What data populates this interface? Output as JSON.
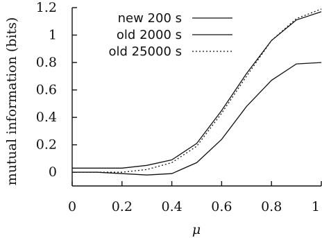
{
  "chart_data": {
    "type": "line",
    "title": "",
    "xlabel": "μ",
    "ylabel": "mutual information (bits)",
    "xlim": [
      0,
      1
    ],
    "ylim": [
      -0.1,
      1.2
    ],
    "xticks": [
      0,
      0.2,
      0.4,
      0.6,
      0.8,
      1
    ],
    "xtick_labels": [
      "0",
      "0.2",
      "0.4",
      "0.6",
      "0.8",
      "1"
    ],
    "yticks": [
      0,
      0.2,
      0.4,
      0.6,
      0.8,
      1,
      1.2
    ],
    "ytick_labels": [
      "0",
      "0.2",
      "0.4",
      "0.6",
      "0.8",
      "1",
      "1.2"
    ],
    "grid": false,
    "legend_position": "top-right",
    "x": [
      0,
      0.1,
      0.2,
      0.3,
      0.4,
      0.5,
      0.6,
      0.7,
      0.8,
      0.9,
      1.0
    ],
    "series": [
      {
        "name": "new 200 s",
        "style": "solid",
        "values": [
          0.03,
          0.03,
          0.03,
          0.05,
          0.09,
          0.21,
          0.45,
          0.72,
          0.96,
          1.11,
          1.17
        ]
      },
      {
        "name": "old 2000 s",
        "style": "solid",
        "values": [
          0.0,
          0.0,
          -0.01,
          -0.02,
          -0.01,
          0.07,
          0.24,
          0.48,
          0.67,
          0.79,
          0.8
        ]
      },
      {
        "name": "old 25000 s",
        "style": "dotted",
        "values": [
          0.0,
          0.0,
          0.0,
          0.02,
          0.07,
          0.19,
          0.43,
          0.7,
          0.96,
          1.12,
          1.19
        ]
      }
    ]
  }
}
